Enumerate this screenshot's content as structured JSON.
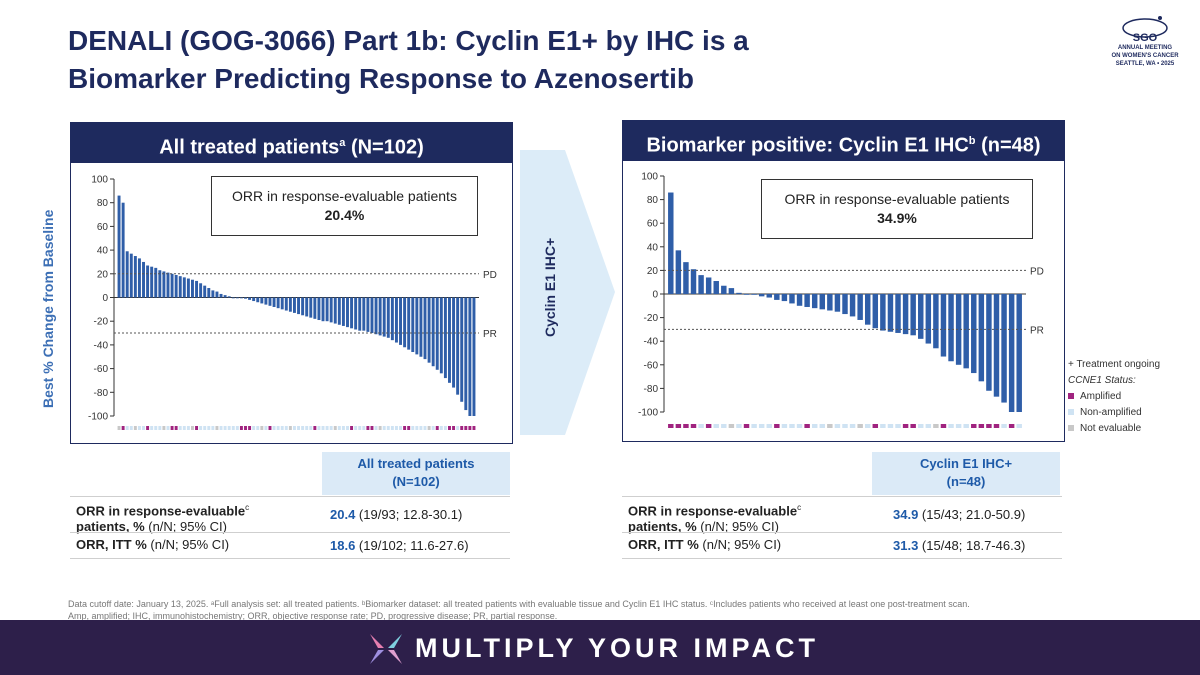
{
  "title": {
    "line1": "DENALI (GOG-3066) Part 1b: Cyclin E1+ by IHC is a",
    "line2": "Biomarker Predicting Response to Azenosertib"
  },
  "logo": {
    "mark": "SGO",
    "line1": "ANNUAL MEETING",
    "line2": "ON WOMEN'S CANCER",
    "line3": "SEATTLE, WA • 2025"
  },
  "arrow_label": "Cyclin E1 IHC+",
  "y_axis_label": "Best % Change from Baseline",
  "left_panel": {
    "header": "All treated patients",
    "header_sup": "a",
    "header_n": " (N=102)",
    "box_line1": "ORR in response-evaluable patients",
    "box_value": "20.4%"
  },
  "right_panel": {
    "header": "Biomarker positive: Cyclin E1 IHC",
    "header_sup": "b",
    "header_n": " (n=48)",
    "box_line1": "ORR in response-evaluable patients",
    "box_value": "34.9%"
  },
  "legend": {
    "ongoing": "+ Treatment ongoing",
    "status_title": "CCNE1 Status:",
    "amplified": "Amplified",
    "non_amplified": "Non-amplified",
    "not_evaluable": "Not evaluable"
  },
  "table_left": {
    "col_header1": "All treated patients",
    "col_header2": "(N=102)",
    "row1_value": "20.4",
    "row1_rest": " (19/93; 12.8-30.1)",
    "row2_value": "18.6",
    "row2_rest": " (19/102; 11.6-27.6)"
  },
  "table_right": {
    "col_header1": "Cyclin E1 IHC+",
    "col_header2": "(n=48)",
    "row1_value": "34.9",
    "row1_rest": " (15/43; 21.0-50.9)",
    "row2_value": "31.3",
    "row2_rest": " (15/48; 18.7-46.3)"
  },
  "row_labels": {
    "row1_a": "ORR in response-evaluable",
    "row1_sup": "c",
    "row1_b": "patients, %",
    "row1_c": " (n/N; 95% CI)",
    "row2_a": "ORR, ITT %",
    "row2_b": " (n/N; 95% CI)"
  },
  "footnote": {
    "line1": "Data cutoff date: January 13, 2025. ᵃFull analysis set: all treated patients. ᵇBiomarker dataset: all treated patients with evaluable tissue and Cyclin E1 IHC status. ᶜIncludes patients who received at least one post-treatment scan.",
    "line2": "Amp, amplified; IHC, immunohistochemistry; ORR, objective response rate; PD, progressive disease; PR, partial response."
  },
  "banner": "MULTIPLY YOUR IMPACT",
  "colors": {
    "navy": "#1e2a5e",
    "bar_blue": "#2f5ea8",
    "amplified": "#a0237f",
    "non_amplified": "#cfe3f3",
    "not_evaluable": "#c8c8c8"
  },
  "chart_data": [
    {
      "type": "bar",
      "title": "All treated patients (N=102)",
      "ylabel": "Best % Change from Baseline",
      "ylim": [
        -100,
        100
      ],
      "yticks": [
        100,
        80,
        60,
        40,
        20,
        0,
        -20,
        -40,
        -60,
        -80,
        -100
      ],
      "reference_lines": [
        {
          "label": "PD",
          "value": 20
        },
        {
          "label": "PR",
          "value": -30
        }
      ],
      "values": [
        86,
        80,
        39,
        37,
        35,
        33,
        30,
        27,
        26,
        25,
        23,
        22,
        21,
        20,
        19,
        18,
        17,
        16,
        15,
        14,
        12,
        10,
        8,
        6,
        5,
        3,
        2,
        1,
        0,
        0,
        0,
        -1,
        -2,
        -3,
        -4,
        -5,
        -6,
        -7,
        -8,
        -9,
        -10,
        -11,
        -12,
        -13,
        -14,
        -15,
        -16,
        -17,
        -18,
        -19,
        -20,
        -20,
        -21,
        -22,
        -23,
        -24,
        -25,
        -26,
        -27,
        -28,
        -28,
        -29,
        -30,
        -31,
        -32,
        -33,
        -34,
        -36,
        -38,
        -40,
        -42,
        -44,
        -46,
        -48,
        -50,
        -52,
        -55,
        -58,
        -61,
        -64,
        -68,
        -72,
        -76,
        -82,
        -88,
        -95,
        -100,
        -100
      ],
      "status": [
        "na",
        "a",
        "n",
        "n",
        "ne",
        "n",
        "n",
        "a",
        "n",
        "n",
        "n",
        "ne",
        "n",
        "a",
        "a",
        "n",
        "n",
        "n",
        "ne",
        "a",
        "n",
        "n",
        "n",
        "n",
        "ne",
        "n",
        "n",
        "n",
        "n",
        "n",
        "a",
        "a",
        "a",
        "n",
        "n",
        "ne",
        "n",
        "a",
        "n",
        "n",
        "n",
        "n",
        "ne",
        "n",
        "n",
        "n",
        "n",
        "n",
        "a",
        "n",
        "n",
        "n",
        "n",
        "ne",
        "n",
        "n",
        "n",
        "a",
        "n",
        "n",
        "n",
        "a",
        "a",
        "n",
        "ne",
        "n",
        "n",
        "n",
        "n",
        "n",
        "a",
        "a",
        "n",
        "n",
        "n",
        "n",
        "ne",
        "n",
        "a",
        "n",
        "n",
        "a",
        "a",
        "n",
        "a",
        "a",
        "a",
        "a"
      ],
      "summary": {
        "orr_response_evaluable": "20.4%"
      }
    },
    {
      "type": "bar",
      "title": "Biomarker positive: Cyclin E1 IHC (n=48)",
      "ylim": [
        -100,
        100
      ],
      "yticks": [
        100,
        80,
        60,
        40,
        20,
        0,
        -20,
        -40,
        -60,
        -80,
        -100
      ],
      "reference_lines": [
        {
          "label": "PD",
          "value": 20
        },
        {
          "label": "PR",
          "value": -30
        }
      ],
      "values": [
        86,
        37,
        27,
        21,
        16,
        14,
        11,
        7,
        5,
        1,
        0,
        0,
        -2,
        -3,
        -5,
        -6,
        -8,
        -10,
        -11,
        -12,
        -13,
        -14,
        -15,
        -17,
        -19,
        -22,
        -26,
        -29,
        -31,
        -32,
        -33,
        -34,
        -35,
        -38,
        -42,
        -46,
        -53,
        -57,
        -60,
        -63,
        -67,
        -74,
        -82,
        -87,
        -92,
        -100,
        -100
      ],
      "status": [
        "a",
        "a",
        "a",
        "a",
        "n",
        "a",
        "n",
        "n",
        "ne",
        "n",
        "a",
        "n",
        "n",
        "n",
        "a",
        "n",
        "n",
        "n",
        "a",
        "n",
        "n",
        "ne",
        "n",
        "n",
        "n",
        "ne",
        "n",
        "a",
        "n",
        "n",
        "n",
        "a",
        "a",
        "n",
        "n",
        "ne",
        "a",
        "n",
        "n",
        "n",
        "a",
        "a",
        "a",
        "a",
        "n",
        "a",
        "n"
      ],
      "summary": {
        "orr_response_evaluable": "34.9%"
      }
    }
  ]
}
